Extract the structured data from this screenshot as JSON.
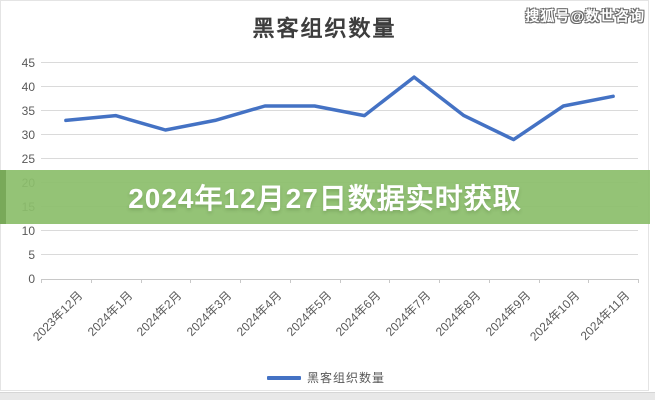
{
  "watermark": "搜狐号@数世咨询",
  "banner": {
    "text": "2024年12月27日数据实时获取",
    "bg_color": "#8cbe6c"
  },
  "chart_data": {
    "type": "line",
    "title": "黑客组织数量",
    "categories": [
      "2023年12月",
      "2024年1月",
      "2024年2月",
      "2024年3月",
      "2024年4月",
      "2024年5月",
      "2024年6月",
      "2024年7月",
      "2024年8月",
      "2024年9月",
      "2024年10月",
      "2024年11月"
    ],
    "series": [
      {
        "name": "黑客组织数量",
        "color": "#4472c4",
        "values": [
          33,
          34,
          31,
          33,
          36,
          36,
          34,
          42,
          34,
          29,
          36,
          38
        ]
      }
    ],
    "xlabel": "",
    "ylabel": "",
    "ylim": [
      0,
      45
    ],
    "ytick_step": 5,
    "grid": true,
    "legend_position": "bottom"
  }
}
